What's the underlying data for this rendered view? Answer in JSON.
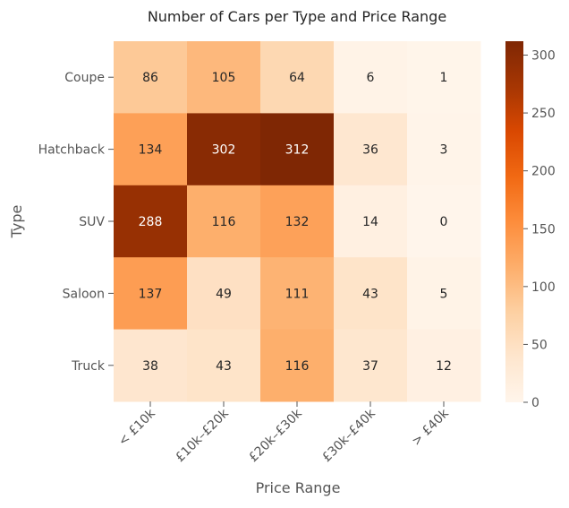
{
  "chart_data": {
    "type": "heatmap",
    "title": "Number of Cars per Type and Price Range",
    "xlabel": "Price Range",
    "ylabel": "Type",
    "x_categories": [
      "< £10k",
      "£10k–£20k",
      "£20k–£30k",
      "£30k–£40k",
      "> £40k"
    ],
    "y_categories": [
      "Coupe",
      "Hatchback",
      "SUV",
      "Saloon",
      "Truck"
    ],
    "values": [
      [
        86,
        105,
        64,
        6,
        1
      ],
      [
        134,
        302,
        312,
        36,
        3
      ],
      [
        288,
        116,
        132,
        14,
        0
      ],
      [
        137,
        49,
        111,
        43,
        5
      ],
      [
        38,
        43,
        116,
        37,
        12
      ]
    ],
    "colorbar": {
      "range": [
        0,
        312
      ],
      "ticks": [
        0,
        50,
        100,
        150,
        200,
        250,
        300
      ],
      "colormap": "Oranges",
      "colors": [
        "#fff5eb",
        "#fee6ce",
        "#fdd0a2",
        "#fdae6b",
        "#fd8d3c",
        "#f16913",
        "#d94801",
        "#a63603",
        "#7f2704"
      ]
    },
    "colors": {
      "text_dark": "#262626",
      "text_light": "#ffffff",
      "axis_text": "#555555"
    }
  }
}
